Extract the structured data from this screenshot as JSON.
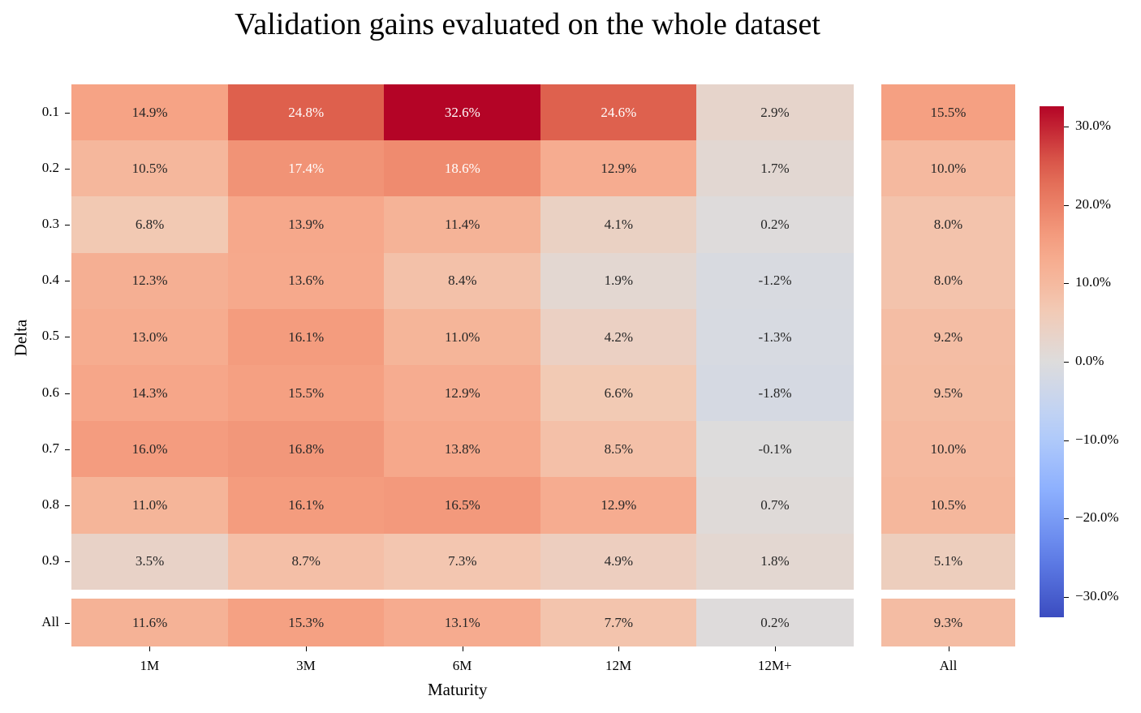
{
  "chart_data": {
    "type": "heatmap",
    "title": "Validation gains evaluated on the whole dataset",
    "xlabel": "Maturity",
    "ylabel": "Delta",
    "columns": [
      "1M",
      "3M",
      "6M",
      "12M",
      "12M+"
    ],
    "rows": [
      "0.1",
      "0.2",
      "0.3",
      "0.4",
      "0.5",
      "0.6",
      "0.7",
      "0.8",
      "0.9"
    ],
    "values": [
      [
        14.9,
        24.8,
        32.6,
        24.6,
        2.9
      ],
      [
        10.5,
        17.4,
        18.6,
        12.9,
        1.7
      ],
      [
        6.8,
        13.9,
        11.4,
        4.1,
        0.2
      ],
      [
        12.3,
        13.6,
        8.4,
        1.9,
        -1.2
      ],
      [
        13.0,
        16.1,
        11.0,
        4.2,
        -1.3
      ],
      [
        14.3,
        15.5,
        12.9,
        6.6,
        -1.8
      ],
      [
        16.0,
        16.8,
        13.8,
        8.5,
        -0.1
      ],
      [
        11.0,
        16.1,
        16.5,
        12.9,
        0.7
      ],
      [
        3.5,
        8.7,
        7.3,
        4.9,
        1.8
      ]
    ],
    "row_all_label": "All",
    "col_all_label": "All",
    "all_row_values": [
      11.6,
      15.3,
      13.1,
      7.7,
      0.2
    ],
    "all_col_values": [
      15.5,
      10.0,
      8.0,
      8.0,
      9.2,
      9.5,
      10.0,
      10.5,
      5.1
    ],
    "grand_total": 9.3,
    "colormap": "coolwarm",
    "vmin": -32.6,
    "vmax": 32.6,
    "colorbar_ticks": [
      "30.0%",
      "20.0%",
      "10.0%",
      "0.0%",
      "−10.0%",
      "−20.0%",
      "−30.0%"
    ],
    "colorbar_tick_values": [
      30,
      20,
      10,
      0,
      -10,
      -20,
      -30
    ]
  }
}
